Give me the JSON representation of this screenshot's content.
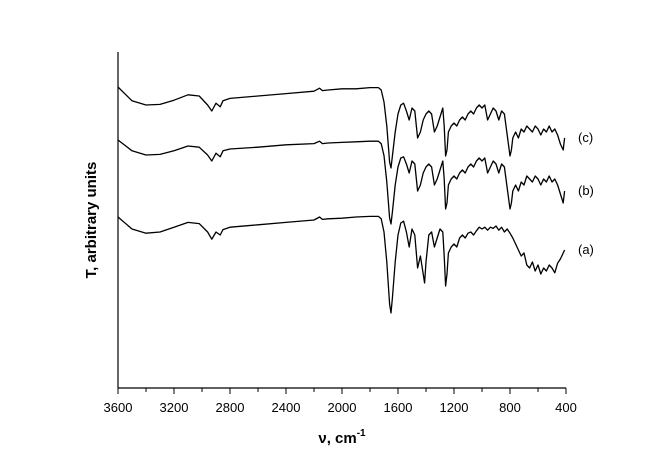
{
  "chart_data": {
    "type": "line",
    "title": "",
    "xlabel": "ν, cm",
    "xlabel_sup": "-1",
    "ylabel": "T, arbitrary units",
    "xlim": [
      3600,
      400
    ],
    "x_reversed": true,
    "xticks": [
      3600,
      3200,
      2800,
      2400,
      2000,
      1600,
      1200,
      800,
      400
    ],
    "yticks_shown": false,
    "grid": false,
    "legend": "none",
    "series": [
      {
        "name": "(c)",
        "color": "#000000",
        "offset": 2,
        "points": [
          [
            3600,
            0.85
          ],
          [
            3500,
            0.62
          ],
          [
            3400,
            0.55
          ],
          [
            3300,
            0.56
          ],
          [
            3200,
            0.63
          ],
          [
            3100,
            0.72
          ],
          [
            3020,
            0.7
          ],
          [
            2960,
            0.55
          ],
          [
            2930,
            0.45
          ],
          [
            2900,
            0.58
          ],
          [
            2870,
            0.52
          ],
          [
            2850,
            0.62
          ],
          [
            2800,
            0.66
          ],
          [
            2600,
            0.7
          ],
          [
            2400,
            0.74
          ],
          [
            2200,
            0.78
          ],
          [
            2160,
            0.83
          ],
          [
            2140,
            0.79
          ],
          [
            2100,
            0.8
          ],
          [
            2000,
            0.82
          ],
          [
            1900,
            0.82
          ],
          [
            1800,
            0.84
          ],
          [
            1740,
            0.84
          ],
          [
            1720,
            0.8
          ],
          [
            1700,
            0.6
          ],
          [
            1680,
            0.2
          ],
          [
            1660,
            -0.4
          ],
          [
            1650,
            -0.5
          ],
          [
            1640,
            -0.3
          ],
          [
            1620,
            0.1
          ],
          [
            1600,
            0.4
          ],
          [
            1580,
            0.55
          ],
          [
            1560,
            0.58
          ],
          [
            1540,
            0.45
          ],
          [
            1520,
            0.3
          ],
          [
            1500,
            0.5
          ],
          [
            1480,
            0.45
          ],
          [
            1460,
            0.0
          ],
          [
            1440,
            0.1
          ],
          [
            1420,
            0.3
          ],
          [
            1400,
            0.4
          ],
          [
            1380,
            0.45
          ],
          [
            1360,
            0.4
          ],
          [
            1340,
            0.1
          ],
          [
            1320,
            0.2
          ],
          [
            1300,
            0.35
          ],
          [
            1280,
            0.5
          ],
          [
            1270,
            0.2
          ],
          [
            1260,
            -0.3
          ],
          [
            1250,
            -0.2
          ],
          [
            1240,
            0.1
          ],
          [
            1220,
            0.2
          ],
          [
            1200,
            0.25
          ],
          [
            1180,
            0.2
          ],
          [
            1160,
            0.3
          ],
          [
            1140,
            0.35
          ],
          [
            1120,
            0.3
          ],
          [
            1100,
            0.4
          ],
          [
            1080,
            0.45
          ],
          [
            1060,
            0.4
          ],
          [
            1040,
            0.5
          ],
          [
            1020,
            0.55
          ],
          [
            1000,
            0.5
          ],
          [
            980,
            0.55
          ],
          [
            960,
            0.3
          ],
          [
            940,
            0.4
          ],
          [
            920,
            0.5
          ],
          [
            900,
            0.45
          ],
          [
            880,
            0.3
          ],
          [
            860,
            0.45
          ],
          [
            840,
            0.4
          ],
          [
            820,
            0.05
          ],
          [
            800,
            -0.3
          ],
          [
            790,
            -0.2
          ],
          [
            780,
            0.0
          ],
          [
            760,
            0.1
          ],
          [
            740,
            0.0
          ],
          [
            720,
            0.15
          ],
          [
            700,
            0.1
          ],
          [
            680,
            0.2
          ],
          [
            660,
            0.15
          ],
          [
            640,
            0.1
          ],
          [
            620,
            0.2
          ],
          [
            600,
            0.15
          ],
          [
            580,
            0.05
          ],
          [
            560,
            0.15
          ],
          [
            540,
            0.1
          ],
          [
            520,
            0.2
          ],
          [
            500,
            0.1
          ],
          [
            480,
            0.15
          ],
          [
            460,
            0.05
          ],
          [
            440,
            -0.1
          ],
          [
            420,
            -0.2
          ],
          [
            410,
            0.0
          ]
        ]
      },
      {
        "name": "(b)",
        "color": "#000000",
        "offset": 1,
        "points": [
          [
            3600,
            0.9
          ],
          [
            3500,
            0.72
          ],
          [
            3400,
            0.65
          ],
          [
            3300,
            0.66
          ],
          [
            3200,
            0.72
          ],
          [
            3100,
            0.8
          ],
          [
            3020,
            0.78
          ],
          [
            2960,
            0.65
          ],
          [
            2930,
            0.55
          ],
          [
            2900,
            0.68
          ],
          [
            2870,
            0.62
          ],
          [
            2850,
            0.72
          ],
          [
            2800,
            0.75
          ],
          [
            2600,
            0.78
          ],
          [
            2400,
            0.82
          ],
          [
            2200,
            0.84
          ],
          [
            2160,
            0.88
          ],
          [
            2140,
            0.84
          ],
          [
            2100,
            0.85
          ],
          [
            2000,
            0.86
          ],
          [
            1900,
            0.87
          ],
          [
            1800,
            0.88
          ],
          [
            1740,
            0.88
          ],
          [
            1720,
            0.84
          ],
          [
            1700,
            0.64
          ],
          [
            1680,
            0.2
          ],
          [
            1660,
            -0.4
          ],
          [
            1650,
            -0.5
          ],
          [
            1640,
            -0.3
          ],
          [
            1620,
            0.15
          ],
          [
            1600,
            0.45
          ],
          [
            1580,
            0.6
          ],
          [
            1560,
            0.62
          ],
          [
            1540,
            0.5
          ],
          [
            1520,
            0.35
          ],
          [
            1500,
            0.55
          ],
          [
            1480,
            0.5
          ],
          [
            1460,
            0.05
          ],
          [
            1440,
            0.15
          ],
          [
            1420,
            0.35
          ],
          [
            1400,
            0.45
          ],
          [
            1380,
            0.5
          ],
          [
            1360,
            0.45
          ],
          [
            1340,
            0.15
          ],
          [
            1320,
            0.25
          ],
          [
            1300,
            0.4
          ],
          [
            1280,
            0.55
          ],
          [
            1270,
            0.25
          ],
          [
            1260,
            -0.25
          ],
          [
            1250,
            -0.15
          ],
          [
            1240,
            0.15
          ],
          [
            1220,
            0.25
          ],
          [
            1200,
            0.3
          ],
          [
            1180,
            0.25
          ],
          [
            1160,
            0.35
          ],
          [
            1140,
            0.4
          ],
          [
            1120,
            0.35
          ],
          [
            1100,
            0.45
          ],
          [
            1080,
            0.5
          ],
          [
            1060,
            0.45
          ],
          [
            1040,
            0.55
          ],
          [
            1020,
            0.6
          ],
          [
            1000,
            0.55
          ],
          [
            980,
            0.6
          ],
          [
            960,
            0.35
          ],
          [
            940,
            0.45
          ],
          [
            920,
            0.55
          ],
          [
            900,
            0.5
          ],
          [
            880,
            0.35
          ],
          [
            860,
            0.5
          ],
          [
            840,
            0.45
          ],
          [
            820,
            0.1
          ],
          [
            800,
            -0.25
          ],
          [
            790,
            -0.15
          ],
          [
            780,
            0.05
          ],
          [
            760,
            0.15
          ],
          [
            740,
            0.05
          ],
          [
            720,
            0.2
          ],
          [
            700,
            0.15
          ],
          [
            680,
            0.3
          ],
          [
            660,
            0.25
          ],
          [
            640,
            0.2
          ],
          [
            620,
            0.3
          ],
          [
            600,
            0.25
          ],
          [
            580,
            0.15
          ],
          [
            560,
            0.25
          ],
          [
            540,
            0.2
          ],
          [
            520,
            0.3
          ],
          [
            500,
            0.2
          ],
          [
            480,
            0.25
          ],
          [
            460,
            0.15
          ],
          [
            440,
            0.0
          ],
          [
            420,
            -0.15
          ],
          [
            410,
            0.05
          ]
        ]
      },
      {
        "name": "(a)",
        "color": "#000000",
        "offset": 0,
        "points": [
          [
            3600,
            0.55
          ],
          [
            3500,
            0.35
          ],
          [
            3400,
            0.28
          ],
          [
            3300,
            0.3
          ],
          [
            3200,
            0.38
          ],
          [
            3100,
            0.46
          ],
          [
            3020,
            0.44
          ],
          [
            2960,
            0.3
          ],
          [
            2930,
            0.18
          ],
          [
            2900,
            0.3
          ],
          [
            2870,
            0.25
          ],
          [
            2850,
            0.34
          ],
          [
            2800,
            0.38
          ],
          [
            2600,
            0.42
          ],
          [
            2400,
            0.46
          ],
          [
            2200,
            0.5
          ],
          [
            2160,
            0.55
          ],
          [
            2140,
            0.51
          ],
          [
            2100,
            0.52
          ],
          [
            2000,
            0.53
          ],
          [
            1900,
            0.55
          ],
          [
            1800,
            0.56
          ],
          [
            1740,
            0.56
          ],
          [
            1720,
            0.52
          ],
          [
            1700,
            0.3
          ],
          [
            1680,
            -0.2
          ],
          [
            1660,
            -0.9
          ],
          [
            1650,
            -1.05
          ],
          [
            1640,
            -0.8
          ],
          [
            1620,
            -0.2
          ],
          [
            1600,
            0.25
          ],
          [
            1580,
            0.45
          ],
          [
            1560,
            0.48
          ],
          [
            1540,
            0.3
          ],
          [
            1520,
            0.05
          ],
          [
            1500,
            0.35
          ],
          [
            1480,
            0.25
          ],
          [
            1460,
            -0.3
          ],
          [
            1440,
            -0.1
          ],
          [
            1420,
            -0.4
          ],
          [
            1410,
            -0.55
          ],
          [
            1400,
            -0.2
          ],
          [
            1380,
            0.25
          ],
          [
            1360,
            0.3
          ],
          [
            1340,
            0.05
          ],
          [
            1320,
            0.2
          ],
          [
            1300,
            0.35
          ],
          [
            1280,
            0.3
          ],
          [
            1270,
            -0.1
          ],
          [
            1260,
            -0.6
          ],
          [
            1250,
            -0.4
          ],
          [
            1240,
            -0.05
          ],
          [
            1220,
            0.05
          ],
          [
            1200,
            0.1
          ],
          [
            1180,
            0.05
          ],
          [
            1160,
            0.2
          ],
          [
            1140,
            0.25
          ],
          [
            1120,
            0.2
          ],
          [
            1100,
            0.28
          ],
          [
            1080,
            0.3
          ],
          [
            1060,
            0.25
          ],
          [
            1040,
            0.32
          ],
          [
            1020,
            0.38
          ],
          [
            1000,
            0.35
          ],
          [
            980,
            0.38
          ],
          [
            960,
            0.33
          ],
          [
            940,
            0.38
          ],
          [
            920,
            0.36
          ],
          [
            900,
            0.4
          ],
          [
            880,
            0.33
          ],
          [
            860,
            0.38
          ],
          [
            840,
            0.3
          ],
          [
            820,
            0.35
          ],
          [
            800,
            0.28
          ],
          [
            780,
            0.2
          ],
          [
            760,
            0.1
          ],
          [
            740,
            0.0
          ],
          [
            720,
            -0.1
          ],
          [
            700,
            -0.05
          ],
          [
            680,
            -0.25
          ],
          [
            660,
            -0.3
          ],
          [
            640,
            -0.2
          ],
          [
            620,
            -0.35
          ],
          [
            600,
            -0.25
          ],
          [
            580,
            -0.4
          ],
          [
            560,
            -0.3
          ],
          [
            540,
            -0.35
          ],
          [
            520,
            -0.25
          ],
          [
            500,
            -0.3
          ],
          [
            480,
            -0.38
          ],
          [
            460,
            -0.22
          ],
          [
            440,
            -0.15
          ],
          [
            420,
            -0.05
          ],
          [
            410,
            0.0
          ]
        ]
      }
    ]
  }
}
